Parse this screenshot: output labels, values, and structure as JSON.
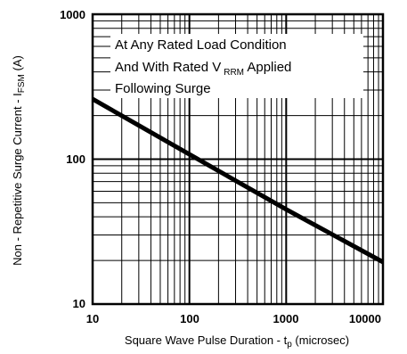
{
  "chart_data": {
    "type": "line",
    "x_scale": "log",
    "y_scale": "log",
    "xlim": [
      10,
      10000
    ],
    "ylim": [
      10,
      1000
    ],
    "x_ticks": [
      "10",
      "100",
      "1000",
      "10000"
    ],
    "y_ticks": [
      "10",
      "100",
      "1000"
    ],
    "xlabel": {
      "main": "Square Wave Pulse Duration - t",
      "sub": "p",
      "suffix": " (microsec)"
    },
    "ylabel": {
      "main": "Non - Repetitive Surge Current - I",
      "sub": "FSM",
      "suffix": " (A)"
    },
    "annotation": {
      "line1": "At Any Rated Load Condition",
      "line2_main": "And With Rated V",
      "line2_sub": "RRM",
      "line2_suffix": " Applied",
      "line3": "Following Surge"
    },
    "grid": true,
    "series": [
      {
        "x": [
          10,
          100,
          1000,
          10000
        ],
        "y": [
          260,
          108,
          45,
          19.5
        ],
        "color": "#000000"
      }
    ]
  }
}
